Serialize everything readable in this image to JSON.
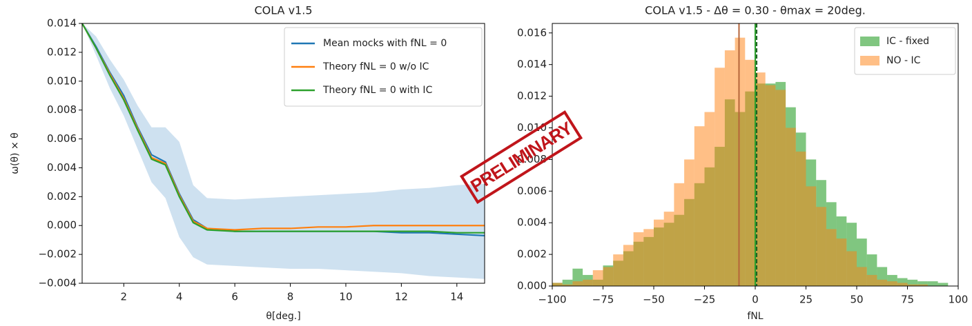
{
  "chart_data": [
    {
      "type": "line",
      "title": "COLA v1.5",
      "xlabel": "θ[deg.]",
      "ylabel": "ω(θ) × θ",
      "x": [
        0.5,
        1,
        1.5,
        2,
        2.5,
        3,
        3.5,
        4,
        4.5,
        5,
        6,
        7,
        8,
        9,
        10,
        11,
        12,
        13,
        14,
        15
      ],
      "xlim": [
        0.5,
        15
      ],
      "xticks": [
        2,
        4,
        6,
        8,
        10,
        12,
        14
      ],
      "ylim": [
        -0.004,
        0.014
      ],
      "yticks": [
        {
          "value": -0.004,
          "label": "−0.004"
        },
        {
          "value": -0.002,
          "label": "−0.002"
        },
        {
          "value": 0,
          "label": "0.000"
        },
        0.002,
        0.004,
        0.006,
        0.008,
        {
          "value": 0.01,
          "label": "0.010"
        },
        0.012,
        0.014
      ],
      "band": {
        "color": "#a6c8e4",
        "upper": [
          0.014,
          0.0131,
          0.0115,
          0.0101,
          0.0083,
          0.0068,
          0.0068,
          0.0058,
          0.0028,
          0.0019,
          0.0018,
          0.0019,
          0.002,
          0.0021,
          0.0022,
          0.0023,
          0.0025,
          0.0026,
          0.0028,
          0.0029
        ],
        "lower": [
          0.014,
          0.0118,
          0.0095,
          0.0076,
          0.0053,
          0.003,
          0.0019,
          -0.0008,
          -0.0022,
          -0.0027,
          -0.0028,
          -0.0029,
          -0.003,
          -0.003,
          -0.0031,
          -0.0032,
          -0.0033,
          -0.0035,
          -0.0036,
          -0.0037
        ]
      },
      "series": [
        {
          "name": "Mean mocks with fNL = 0",
          "color": "#1f77b4",
          "values": [
            0.014,
            0.0124,
            0.0106,
            0.009,
            0.0068,
            0.0049,
            0.0044,
            0.0022,
            0.0004,
            -0.0002,
            -0.0004,
            -0.0004,
            -0.0004,
            -0.0004,
            -0.0004,
            -0.0004,
            -0.0005,
            -0.0005,
            -0.0006,
            -0.0007
          ]
        },
        {
          "name": "Theory fNL = 0 w/o IC",
          "color": "#ff7f0e",
          "values": [
            0.014,
            0.0123,
            0.0105,
            0.0088,
            0.0067,
            0.0047,
            0.0043,
            0.0021,
            0.0003,
            -0.0002,
            -0.0003,
            -0.0002,
            -0.0002,
            -0.0001,
            -0.0001,
            0,
            0,
            0,
            0,
            0
          ]
        },
        {
          "name": "Theory fNL = 0 with IC",
          "color": "#2ca02c",
          "values": [
            0.014,
            0.0123,
            0.0104,
            0.0087,
            0.0066,
            0.0046,
            0.0042,
            0.002,
            0.0002,
            -0.0003,
            -0.0004,
            -0.0004,
            -0.0004,
            -0.0004,
            -0.0004,
            -0.0004,
            -0.0004,
            -0.0004,
            -0.0005,
            -0.0005
          ]
        }
      ],
      "legend": "upper right",
      "grid": false
    },
    {
      "type": "histogram",
      "title": "COLA v1.5 - Δθ = 0.30 - θmax = 20deg.",
      "xlabel": "fNL",
      "bins": [
        -100,
        -95,
        -90,
        -85,
        -80,
        -75,
        -70,
        -65,
        -60,
        -55,
        -50,
        -45,
        -40,
        -35,
        -30,
        -25,
        -20,
        -15,
        -10,
        -5,
        0,
        5,
        10,
        15,
        20,
        25,
        30,
        35,
        40,
        45,
        50,
        55,
        60,
        65,
        70,
        75,
        80,
        85,
        90,
        95,
        100
      ],
      "xlim": [
        -100,
        100
      ],
      "xticks": [
        {
          "value": -100,
          "label": "−100"
        },
        {
          "value": -75,
          "label": "−75"
        },
        {
          "value": -50,
          "label": "−50"
        },
        {
          "value": -25,
          "label": "−25"
        },
        0,
        25,
        50,
        75,
        100
      ],
      "ylim": [
        0,
        0.0166
      ],
      "yticks": [
        {
          "value": 0,
          "label": "0.000"
        },
        0.002,
        0.004,
        0.006,
        0.008,
        {
          "value": 0.01,
          "label": "0.010"
        },
        0.012,
        0.014,
        0.016
      ],
      "series": [
        {
          "name": "IC - fixed",
          "color": "#2ca02c",
          "alpha": 0.6,
          "values": [
            0.0002,
            0.0004,
            0.0011,
            0.0007,
            0.0004,
            0.0013,
            0.0016,
            0.0022,
            0.0028,
            0.0031,
            0.0037,
            0.004,
            0.0045,
            0.0055,
            0.0065,
            0.0075,
            0.0088,
            0.0118,
            0.011,
            0.0123,
            0.0128,
            0.0128,
            0.0129,
            0.0113,
            0.0097,
            0.008,
            0.0067,
            0.0053,
            0.0044,
            0.004,
            0.003,
            0.002,
            0.0012,
            0.0007,
            0.0005,
            0.0004,
            0.0003,
            0.0003,
            0.0002,
            0
          ]
        },
        {
          "name": "NO - IC",
          "color": "#ff7f0e",
          "alpha": 0.5,
          "values": [
            0.0002,
            0.0001,
            0.0003,
            0.0004,
            0.001,
            0.0012,
            0.002,
            0.0026,
            0.0034,
            0.0036,
            0.0042,
            0.0047,
            0.0065,
            0.008,
            0.0101,
            0.011,
            0.0138,
            0.0149,
            0.0157,
            0.0143,
            0.0135,
            0.0127,
            0.0124,
            0.01,
            0.0085,
            0.0063,
            0.005,
            0.0036,
            0.003,
            0.0022,
            0.0012,
            0.0007,
            0.0004,
            0.0003,
            0.0002,
            0.0001,
            0.0001,
            0,
            0,
            0
          ]
        }
      ],
      "vlines": [
        {
          "x": -8,
          "color": "#b5653a",
          "dashed": false
        },
        {
          "x": 0,
          "color": "#2ca02c",
          "dashed": false
        },
        {
          "x": 0.7,
          "color": "#1b5e20",
          "dashed": true
        }
      ],
      "legend": "upper right",
      "grid": false
    }
  ],
  "stamp": "PRELIMINARY"
}
